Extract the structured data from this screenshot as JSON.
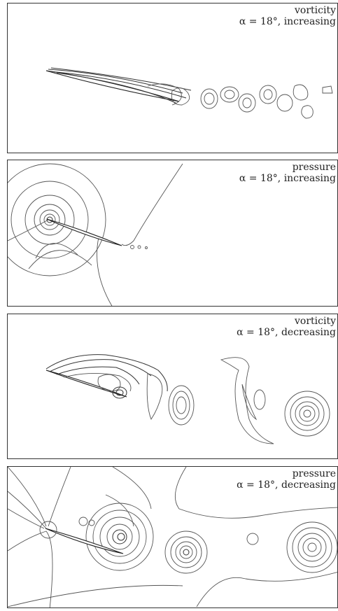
{
  "panels": [
    {
      "field": "vorticity",
      "condition": "α = 18°, increasing"
    },
    {
      "field": "pressure",
      "condition": "α = 18°, increasing"
    },
    {
      "field": "vorticity",
      "condition": "α = 18°, decreasing"
    },
    {
      "field": "pressure",
      "condition": "α = 18°, decreasing"
    }
  ]
}
